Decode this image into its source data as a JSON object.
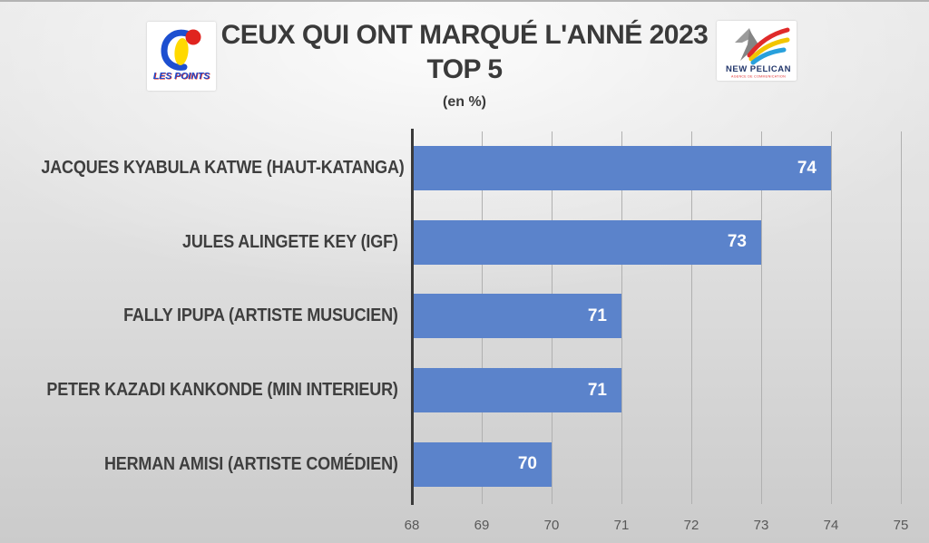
{
  "header": {
    "title_line1": "CEUX QUI ONT MARQUÉ L'ANNÉ 2023",
    "title_line2": "TOP 5",
    "unit_label": "(en %)"
  },
  "logos": {
    "les_points": {
      "text": "LES POINTS",
      "colors": {
        "blue": "#1d4fd0",
        "yellow": "#ffd900",
        "red": "#e0241f"
      }
    },
    "new_pelican": {
      "text": "NEW PELICAN",
      "tagline": "AGENCE DE COMMUNICATION",
      "colors": {
        "gray_light": "#9b9b9b",
        "gray_dark": "#848484",
        "red": "#e02a2a",
        "yellow": "#f2c500",
        "blue": "#28a0dc",
        "navy": "#22366b"
      }
    }
  },
  "chart_data": {
    "type": "bar",
    "orientation": "horizontal",
    "title": "CEUX QUI ONT MARQUÉ L'ANNÉ 2023 TOP 5",
    "unit": "en %",
    "categories": [
      "JACQUES KYABULA KATWE (HAUT-KATANGA)",
      "JULES ALINGETE KEY (IGF)",
      "FALLY IPUPA (ARTISTE MUSUCIEN)",
      "PETER KAZADI KANKONDE (MIN INTERIEUR)",
      "HERMAN AMISI (ARTISTE COMÉDIEN)"
    ],
    "values": [
      74,
      73,
      71,
      71,
      70
    ],
    "xlim": [
      68,
      75
    ],
    "xticks": [
      68,
      69,
      70,
      71,
      72,
      73,
      74,
      75
    ],
    "bar_color": "#5b83cb",
    "value_label_color": "#ffffff",
    "grid": true,
    "legend_position": "none"
  }
}
